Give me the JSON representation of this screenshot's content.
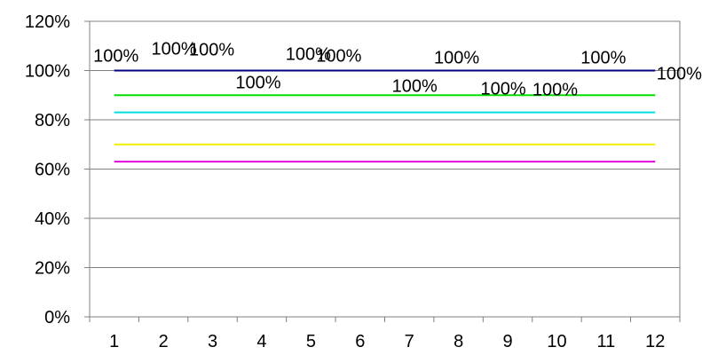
{
  "chart_data": {
    "type": "line",
    "categories": [
      "1",
      "2",
      "3",
      "4",
      "5",
      "6",
      "7",
      "8",
      "9",
      "10",
      "11",
      "12"
    ],
    "ylim": [
      0,
      1.2
    ],
    "yticks": [
      "0%",
      "20%",
      "40%",
      "60%",
      "80%",
      "100%",
      "120%"
    ],
    "grid": true,
    "legend": "none",
    "series": [
      {
        "color": "#000080",
        "values": [
          1,
          1,
          1,
          1,
          1,
          1,
          1,
          1,
          1,
          1,
          1,
          1
        ],
        "data_labels": [
          "100%",
          "100%",
          "100%",
          "100%",
          "100%",
          "100%",
          "100%",
          "100%",
          "100%",
          "100%",
          "100%",
          "100%"
        ]
      },
      {
        "color": "#00e000",
        "values": [
          0.9,
          0.9,
          0.9,
          0.9,
          0.9,
          0.9,
          0.9,
          0.9,
          0.9,
          0.9,
          0.9,
          0.9
        ]
      },
      {
        "color": "#00e0e0",
        "values": [
          0.83,
          0.83,
          0.83,
          0.83,
          0.83,
          0.83,
          0.83,
          0.83,
          0.83,
          0.83,
          0.83,
          0.83
        ]
      },
      {
        "color": "#f0f000",
        "values": [
          0.7,
          0.7,
          0.7,
          0.7,
          0.7,
          0.7,
          0.7,
          0.7,
          0.7,
          0.7,
          0.7,
          0.7
        ]
      },
      {
        "color": "#e000e0",
        "values": [
          0.63,
          0.63,
          0.63,
          0.63,
          0.63,
          0.63,
          0.63,
          0.63,
          0.63,
          0.63,
          0.63,
          0.63
        ]
      }
    ]
  }
}
